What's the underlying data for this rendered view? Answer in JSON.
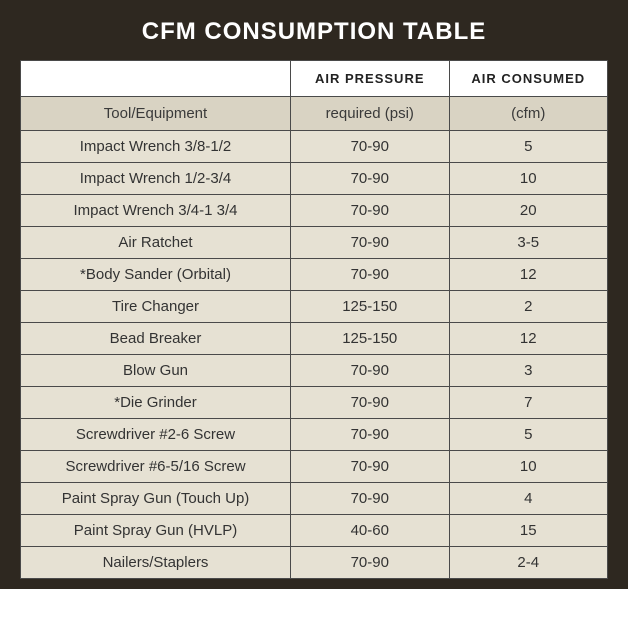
{
  "title": "CFM CONSUMPTION TABLE",
  "table": {
    "type": "table",
    "colors": {
      "outer_bg": "#2e2820",
      "title_color": "#ffffff",
      "header_bg": "#ffffff",
      "subhead_bg": "#d9d3c3",
      "row_bg": "#e6e1d3",
      "border": "#4a4a4a",
      "text": "#333333"
    },
    "fontsize": {
      "title": 24,
      "header": 13,
      "body": 15
    },
    "column_widths_pct": [
      46,
      27,
      27
    ],
    "headers": [
      "",
      "AIR PRESSURE",
      "AIR CONSUMED"
    ],
    "subheaders": [
      "Tool/Equipment",
      "required (psi)",
      "(cfm)"
    ],
    "rows": [
      {
        "tool": "Impact Wrench 3/8-1/2",
        "psi": "70-90",
        "cfm": "5"
      },
      {
        "tool": "Impact Wrench 1/2-3/4",
        "psi": "70-90",
        "cfm": "10"
      },
      {
        "tool": "Impact Wrench 3/4-1 3/4",
        "psi": "70-90",
        "cfm": "20"
      },
      {
        "tool": "Air Ratchet",
        "psi": "70-90",
        "cfm": "3-5"
      },
      {
        "tool": "*Body Sander (Orbital)",
        "psi": "70-90",
        "cfm": "12"
      },
      {
        "tool": "Tire Changer",
        "psi": "125-150",
        "cfm": "2"
      },
      {
        "tool": "Bead Breaker",
        "psi": "125-150",
        "cfm": "12"
      },
      {
        "tool": "Blow Gun",
        "psi": "70-90",
        "cfm": "3"
      },
      {
        "tool": "*Die Grinder",
        "psi": "70-90",
        "cfm": "7"
      },
      {
        "tool": "Screwdriver #2-6 Screw",
        "psi": "70-90",
        "cfm": "5"
      },
      {
        "tool": "Screwdriver #6-5/16 Screw",
        "psi": "70-90",
        "cfm": "10"
      },
      {
        "tool": "Paint Spray Gun (Touch Up)",
        "psi": "70-90",
        "cfm": "4"
      },
      {
        "tool": "Paint Spray Gun (HVLP)",
        "psi": "40-60",
        "cfm": "15"
      },
      {
        "tool": "Nailers/Staplers",
        "psi": "70-90",
        "cfm": "2-4"
      }
    ]
  }
}
